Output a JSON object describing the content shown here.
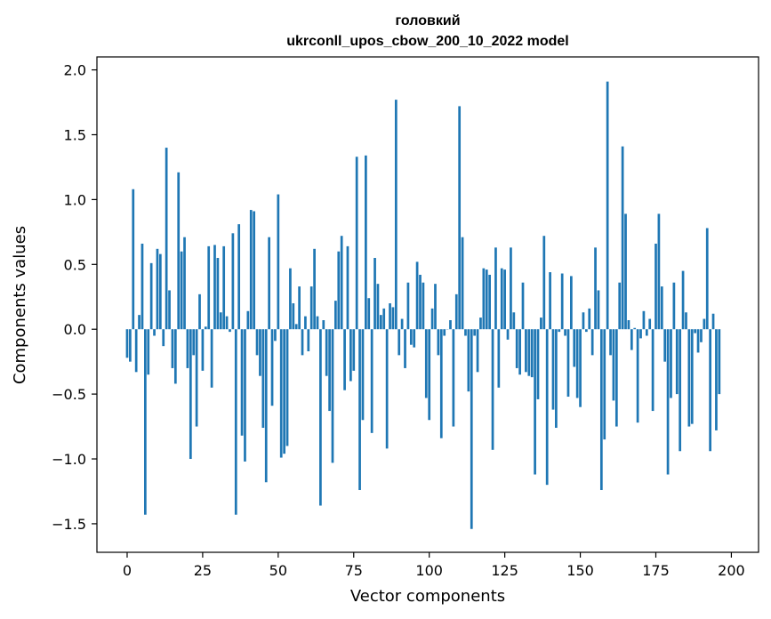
{
  "chart_data": {
    "type": "bar",
    "title_line1": "головкий",
    "title_line2": "ukrconll_upos_cbow_200_10_2022 model",
    "xlabel": "Vector components",
    "ylabel": "Components values",
    "xlim": [
      -10,
      209
    ],
    "ylim": [
      -1.72,
      2.1
    ],
    "x_ticks": [
      0,
      25,
      50,
      75,
      100,
      125,
      150,
      175,
      200
    ],
    "x_tick_labels": [
      "0",
      "25",
      "50",
      "75",
      "100",
      "125",
      "150",
      "175",
      "200"
    ],
    "y_ticks": [
      2.0,
      1.5,
      1.0,
      0.5,
      0.0,
      -0.5,
      -1.0,
      -1.5
    ],
    "y_tick_labels": [
      "2.0",
      "1.5",
      "1.0",
      "0.5",
      "0.0",
      "−0.5",
      "−1.0",
      "−1.5"
    ],
    "grid": false,
    "bar_color": "#1f77b4",
    "values": [
      -0.22,
      -0.25,
      1.08,
      -0.33,
      0.11,
      0.66,
      -1.43,
      -0.35,
      0.51,
      -0.05,
      0.62,
      0.58,
      -0.13,
      1.4,
      0.3,
      -0.3,
      -0.42,
      1.21,
      0.6,
      0.71,
      -0.3,
      -1.0,
      -0.2,
      -0.75,
      0.27,
      -0.32,
      0.02,
      0.64,
      -0.45,
      0.65,
      0.55,
      0.13,
      0.64,
      0.1,
      -0.02,
      0.74,
      -1.43,
      0.81,
      -0.82,
      -1.02,
      0.14,
      0.92,
      0.91,
      -0.2,
      -0.36,
      -0.76,
      -1.18,
      0.71,
      -0.59,
      -0.09,
      1.04,
      -0.99,
      -0.96,
      -0.9,
      0.47,
      0.2,
      0.04,
      0.33,
      -0.2,
      0.1,
      -0.17,
      0.33,
      0.62,
      0.1,
      -1.36,
      0.07,
      -0.36,
      -0.63,
      -1.03,
      0.22,
      0.6,
      0.72,
      -0.47,
      0.64,
      -0.4,
      -0.32,
      1.33,
      -1.24,
      -0.7,
      1.34,
      0.24,
      -0.8,
      0.55,
      0.35,
      0.11,
      0.16,
      -0.92,
      0.2,
      0.17,
      1.77,
      -0.2,
      0.08,
      -0.3,
      0.36,
      -0.12,
      -0.14,
      0.52,
      0.42,
      0.36,
      -0.53,
      -0.7,
      0.16,
      0.35,
      -0.2,
      -0.84,
      -0.05,
      0.0,
      0.07,
      -0.75,
      0.27,
      1.72,
      0.71,
      -0.05,
      -0.48,
      -1.54,
      -0.05,
      -0.33,
      0.09,
      0.47,
      0.46,
      0.42,
      -0.93,
      0.63,
      -0.45,
      0.47,
      0.46,
      -0.08,
      0.63,
      0.13,
      -0.3,
      -0.35,
      0.36,
      -0.33,
      -0.36,
      -0.37,
      -1.12,
      -0.54,
      0.09,
      0.72,
      -1.2,
      0.44,
      -0.62,
      -0.76,
      -0.02,
      0.43,
      -0.05,
      -0.52,
      0.41,
      -0.29,
      -0.53,
      -0.6,
      0.13,
      -0.02,
      0.16,
      -0.2,
      0.63,
      0.3,
      -1.24,
      -0.85,
      1.91,
      -0.2,
      -0.55,
      -0.75,
      0.36,
      1.41,
      0.89,
      0.07,
      -0.16,
      0.01,
      -0.72,
      -0.07,
      0.14,
      -0.05,
      0.08,
      -0.63,
      0.66,
      0.89,
      0.33,
      -0.25,
      -1.12,
      -0.53,
      0.36,
      -0.5,
      -0.94,
      0.45,
      0.13,
      -0.75,
      -0.73,
      -0.03,
      -0.18,
      -0.1,
      0.08,
      0.78,
      -0.94,
      0.12,
      -0.78,
      -0.5
    ]
  }
}
